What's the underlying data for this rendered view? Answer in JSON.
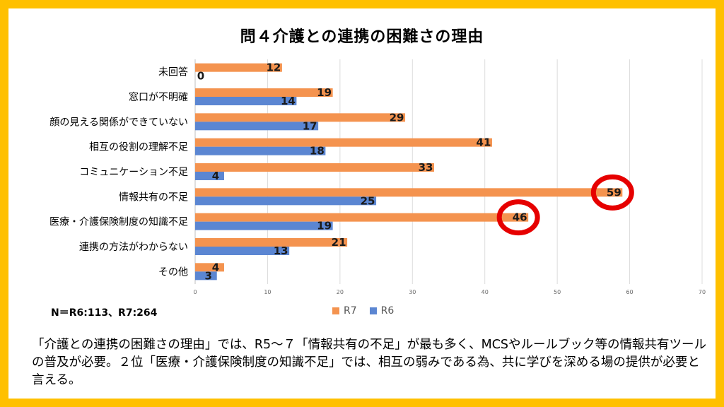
{
  "chart_data": {
    "type": "bar",
    "orientation": "horizontal",
    "title": "問４介護との連携の困難さの理由",
    "categories": [
      "未回答",
      "窓口が不明確",
      "顔の見える関係ができていない",
      "相互の役割の理解不足",
      "コミュニケーション不足",
      "情報共有の不足",
      "医療・介護保険制度の知識不足",
      "連携の方法がわからない",
      "その他"
    ],
    "series": [
      {
        "name": "R7",
        "color": "#F4934F",
        "values": [
          12,
          19,
          29,
          41,
          33,
          59,
          46,
          21,
          4
        ]
      },
      {
        "name": "R6",
        "color": "#5B86D2",
        "values": [
          0,
          14,
          17,
          18,
          4,
          25,
          19,
          13,
          3
        ]
      }
    ],
    "xlim": [
      0,
      70
    ],
    "xticks": [
      0,
      10,
      20,
      30,
      40,
      50,
      60,
      70
    ],
    "highlighted": [
      {
        "category": "情報共有の不足",
        "series": "R7"
      },
      {
        "category": "医療・介護保険制度の知識不足",
        "series": "R7"
      }
    ],
    "grid": true,
    "legend": "bottom"
  },
  "sample_size": "N＝R6:113、R7:264",
  "caption": "「介護との連携の困難さの理由」では、R5～７「情報共有の不足」が最も多く、MCSやルールブック等の情報共有ツールの普及が必要。２位「医療・介護保険制度の知識不足」では、相互の弱みである為、共に学びを深める場の提供が必要と言える。"
}
